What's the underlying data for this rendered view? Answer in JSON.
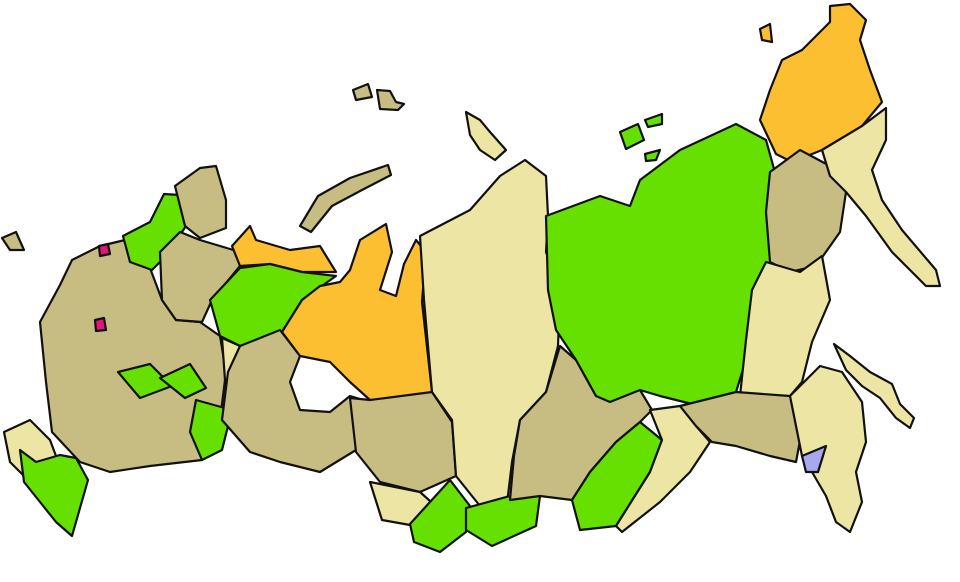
{
  "map": {
    "background": "#ffffff",
    "outline_color": "#111111",
    "category_colors": {
      "tan": "#c7bd82",
      "green": "#66e000",
      "orange": "#fdbf32",
      "light_yellow": "#ede5a3",
      "blue": "#a8a8f0",
      "magenta": "#e0167a"
    }
  }
}
